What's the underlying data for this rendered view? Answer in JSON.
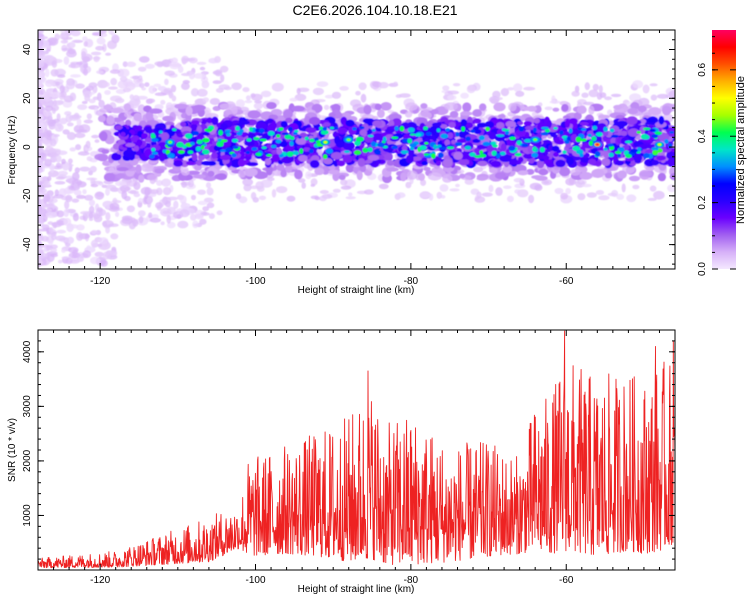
{
  "figure_title": "C2E6.2026.104.10.18.E21",
  "chart_data": [
    {
      "type": "heatmap",
      "title": "C2E6.2026.104.10.18.E21",
      "xlabel": "Height of straight line (km)",
      "ylabel": "Frequency (Hz)",
      "xlim": [
        -128,
        -46
      ],
      "ylim": [
        -50,
        48
      ],
      "x_ticks": [
        -120,
        -100,
        -80,
        -60
      ],
      "x_tick_labels": [
        "-120",
        "-100",
        "-80",
        "-60"
      ],
      "y_ticks": [
        -40,
        -20,
        0,
        20,
        40
      ],
      "y_tick_labels": [
        "-40",
        "-20",
        "0",
        "20",
        "40"
      ],
      "band_center_hz": 2,
      "band_halfwidth_hz": 9,
      "colorbar": {
        "label": "Normalized spectral amplitude",
        "range": [
          0.0,
          0.72
        ],
        "ticks": [
          0.0,
          0.2,
          0.4,
          0.6
        ],
        "tick_labels": [
          "0.0",
          "0.2",
          "0.4",
          "0.6"
        ],
        "colormap": [
          "#f4e8ff",
          "#d6b0f8",
          "#a15ff0",
          "#6a00ff",
          "#2a00ff",
          "#0000ff",
          "#0090ff",
          "#00e6c8",
          "#00ff50",
          "#a6ff00",
          "#ffff00",
          "#ffb000",
          "#ff5000",
          "#ff0000",
          "#ff0060"
        ]
      },
      "notable_peaks": [
        {
          "x": -111,
          "y": 2,
          "value": 0.45
        },
        {
          "x": -91,
          "y": 2,
          "value": 0.5
        },
        {
          "x": -88,
          "y": 3,
          "value": 0.45
        },
        {
          "x": -64,
          "y": 3,
          "value": 0.45
        },
        {
          "x": -56,
          "y": 1,
          "value": 0.7
        },
        {
          "x": -48,
          "y": 1,
          "value": 0.5
        }
      ]
    },
    {
      "type": "line",
      "xlabel": "Height of straight line (km)",
      "ylabel": "SNR (10 * v/v)",
      "xlim": [
        -128,
        -46
      ],
      "ylim": [
        0,
        4400
      ],
      "x_ticks": [
        -120,
        -100,
        -80,
        -60
      ],
      "x_tick_labels": [
        "-120",
        "-100",
        "-80",
        "-60"
      ],
      "y_ticks": [
        1000,
        2000,
        3000,
        4000
      ],
      "y_tick_labels": [
        "1000",
        "2000",
        "3000",
        "4000"
      ],
      "color": "#ee2222",
      "envelope": {
        "x": [
          -128,
          -118,
          -106,
          -102,
          -101,
          -96,
          -92,
          -88,
          -85,
          -83,
          -80,
          -75,
          -70,
          -66,
          -64,
          -62,
          -60,
          -58,
          -56,
          -52,
          -50,
          -48,
          -46
        ],
        "max": [
          230,
          380,
          1050,
          1300,
          2200,
          2500,
          2750,
          3100,
          3650,
          2900,
          3200,
          2500,
          2550,
          2250,
          3300,
          3500,
          4300,
          4000,
          3850,
          3950,
          3800,
          4100,
          4200
        ],
        "min": [
          40,
          50,
          150,
          400,
          250,
          300,
          250,
          150,
          200,
          100,
          100,
          150,
          250,
          300,
          350,
          300,
          350,
          300,
          250,
          350,
          300,
          350,
          500
        ]
      },
      "notable_peaks": [
        {
          "x": -85.5,
          "y": 3650
        },
        {
          "x": -60.2,
          "y": 4380
        },
        {
          "x": -48.5,
          "y": 4100
        },
        {
          "x": -46.2,
          "y": 4200
        }
      ]
    }
  ]
}
